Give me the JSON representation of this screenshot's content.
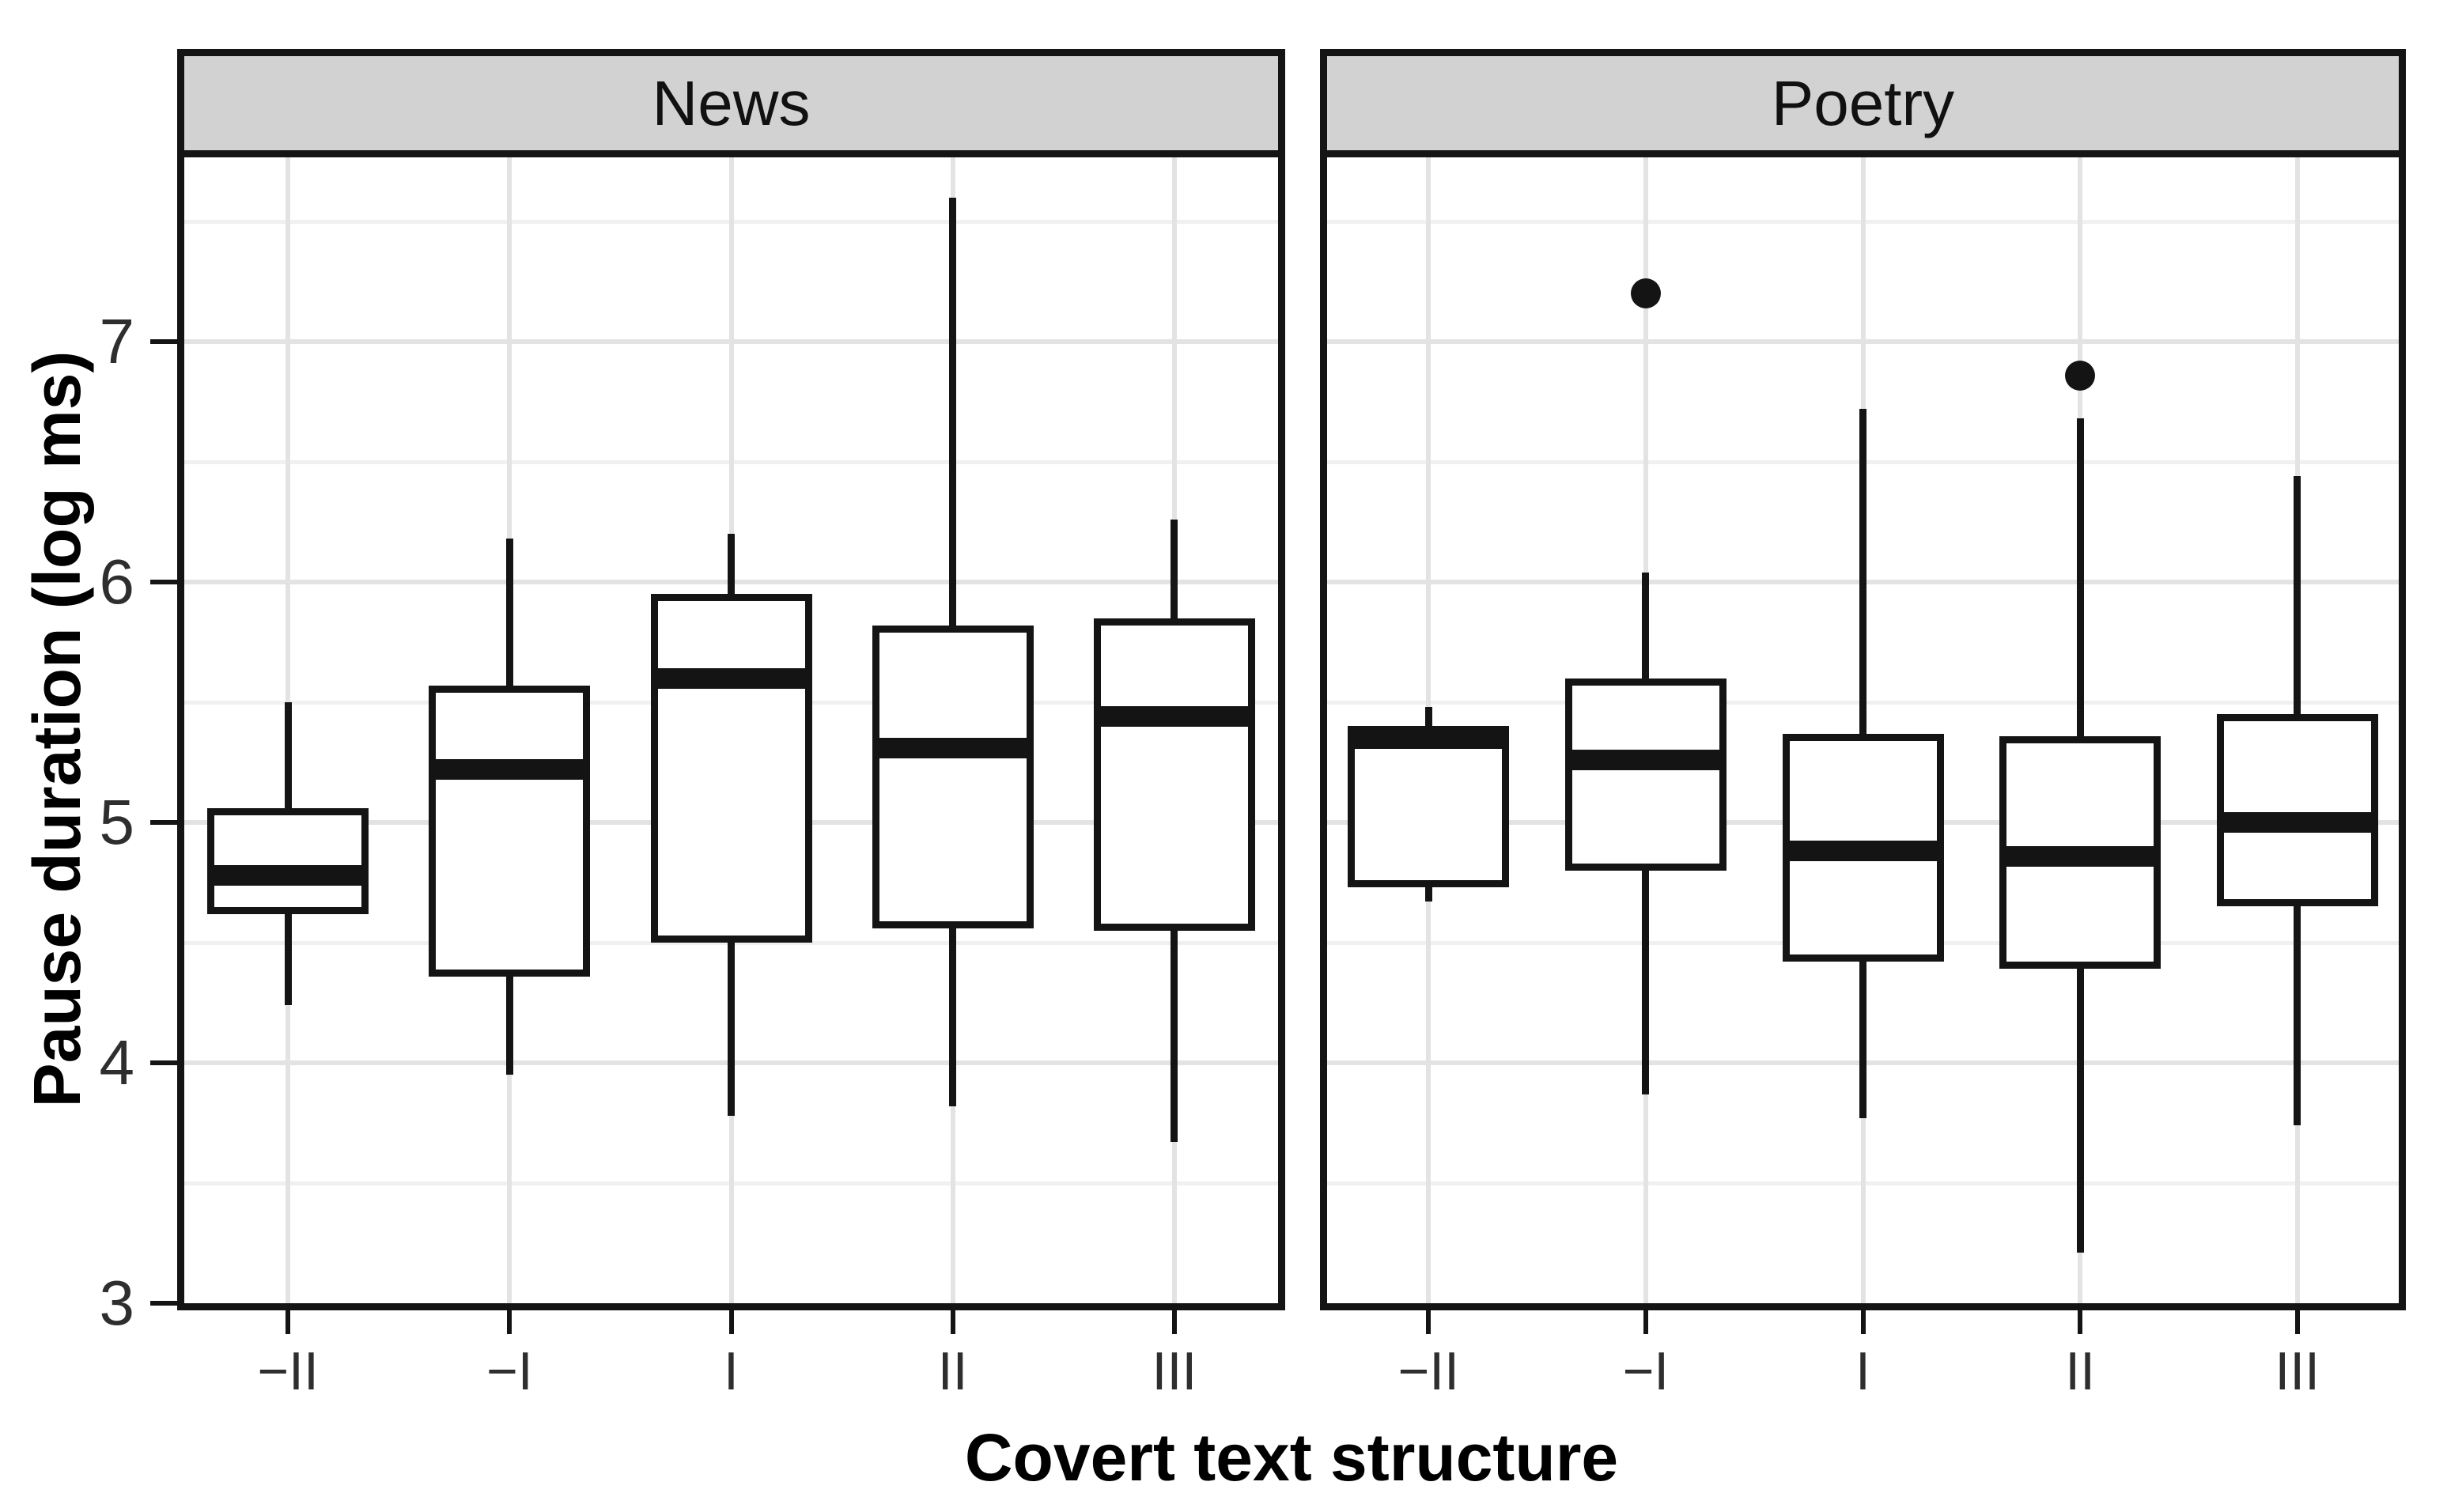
{
  "figure": {
    "y_axis_title": "Pause duration (log ms)",
    "x_axis_title": "Covert text structure",
    "facet_labels": [
      "News",
      "Poetry"
    ]
  },
  "colors": {
    "ink": "#141414",
    "panel_border": "#141414",
    "strip_fill": "#d2d2d2",
    "grid_major": "#e3e3e3",
    "grid_minor": "#f0f0f0",
    "tick_label": "#2e2e2e",
    "background": "#ffffff"
  },
  "chart_data": {
    "type": "boxplot",
    "title": "",
    "xlabel": "Covert text structure",
    "ylabel": "Pause duration (log ms)",
    "ylim": [
      3,
      7.8
    ],
    "yticks": [
      "3",
      "4",
      "5",
      "6",
      "7"
    ],
    "ytick_values": [
      3,
      4,
      5,
      6,
      7
    ],
    "minor_gridlines": [
      3.5,
      4.5,
      5.5,
      6.5,
      7.5
    ],
    "grid": true,
    "legend": "none",
    "categories": [
      "−II",
      "−I",
      "I",
      "II",
      "III"
    ],
    "facets": [
      {
        "label": "News",
        "boxes": [
          {
            "category": "−II",
            "whisker_low": 4.24,
            "q1": 4.62,
            "median": 4.78,
            "q3": 5.06,
            "whisker_high": 5.5,
            "outliers": []
          },
          {
            "category": "−I",
            "whisker_low": 3.95,
            "q1": 4.36,
            "median": 5.22,
            "q3": 5.57,
            "whisker_high": 6.18,
            "outliers": []
          },
          {
            "category": "I",
            "whisker_low": 3.78,
            "q1": 4.5,
            "median": 5.6,
            "q3": 5.95,
            "whisker_high": 6.2,
            "outliers": []
          },
          {
            "category": "II",
            "whisker_low": 3.82,
            "q1": 4.56,
            "median": 5.31,
            "q3": 5.82,
            "whisker_high": 7.6,
            "outliers": []
          },
          {
            "category": "III",
            "whisker_low": 3.67,
            "q1": 4.55,
            "median": 5.44,
            "q3": 5.85,
            "whisker_high": 6.26,
            "outliers": []
          }
        ]
      },
      {
        "label": "Poetry",
        "boxes": [
          {
            "category": "−II",
            "whisker_low": 4.67,
            "q1": 4.73,
            "median": 5.35,
            "q3": 5.4,
            "whisker_high": 5.48,
            "outliers": []
          },
          {
            "category": "−I",
            "whisker_low": 3.87,
            "q1": 4.8,
            "median": 5.26,
            "q3": 5.6,
            "whisker_high": 6.04,
            "outliers": [
              7.2
            ]
          },
          {
            "category": "I",
            "whisker_low": 3.77,
            "q1": 4.42,
            "median": 4.88,
            "q3": 5.37,
            "whisker_high": 6.72,
            "outliers": []
          },
          {
            "category": "II",
            "whisker_low": 3.21,
            "q1": 4.39,
            "median": 4.86,
            "q3": 5.36,
            "whisker_high": 6.68,
            "outliers": [
              6.86
            ]
          },
          {
            "category": "III",
            "whisker_low": 3.74,
            "q1": 4.65,
            "median": 5.0,
            "q3": 5.45,
            "whisker_high": 6.44,
            "outliers": []
          }
        ]
      }
    ]
  }
}
